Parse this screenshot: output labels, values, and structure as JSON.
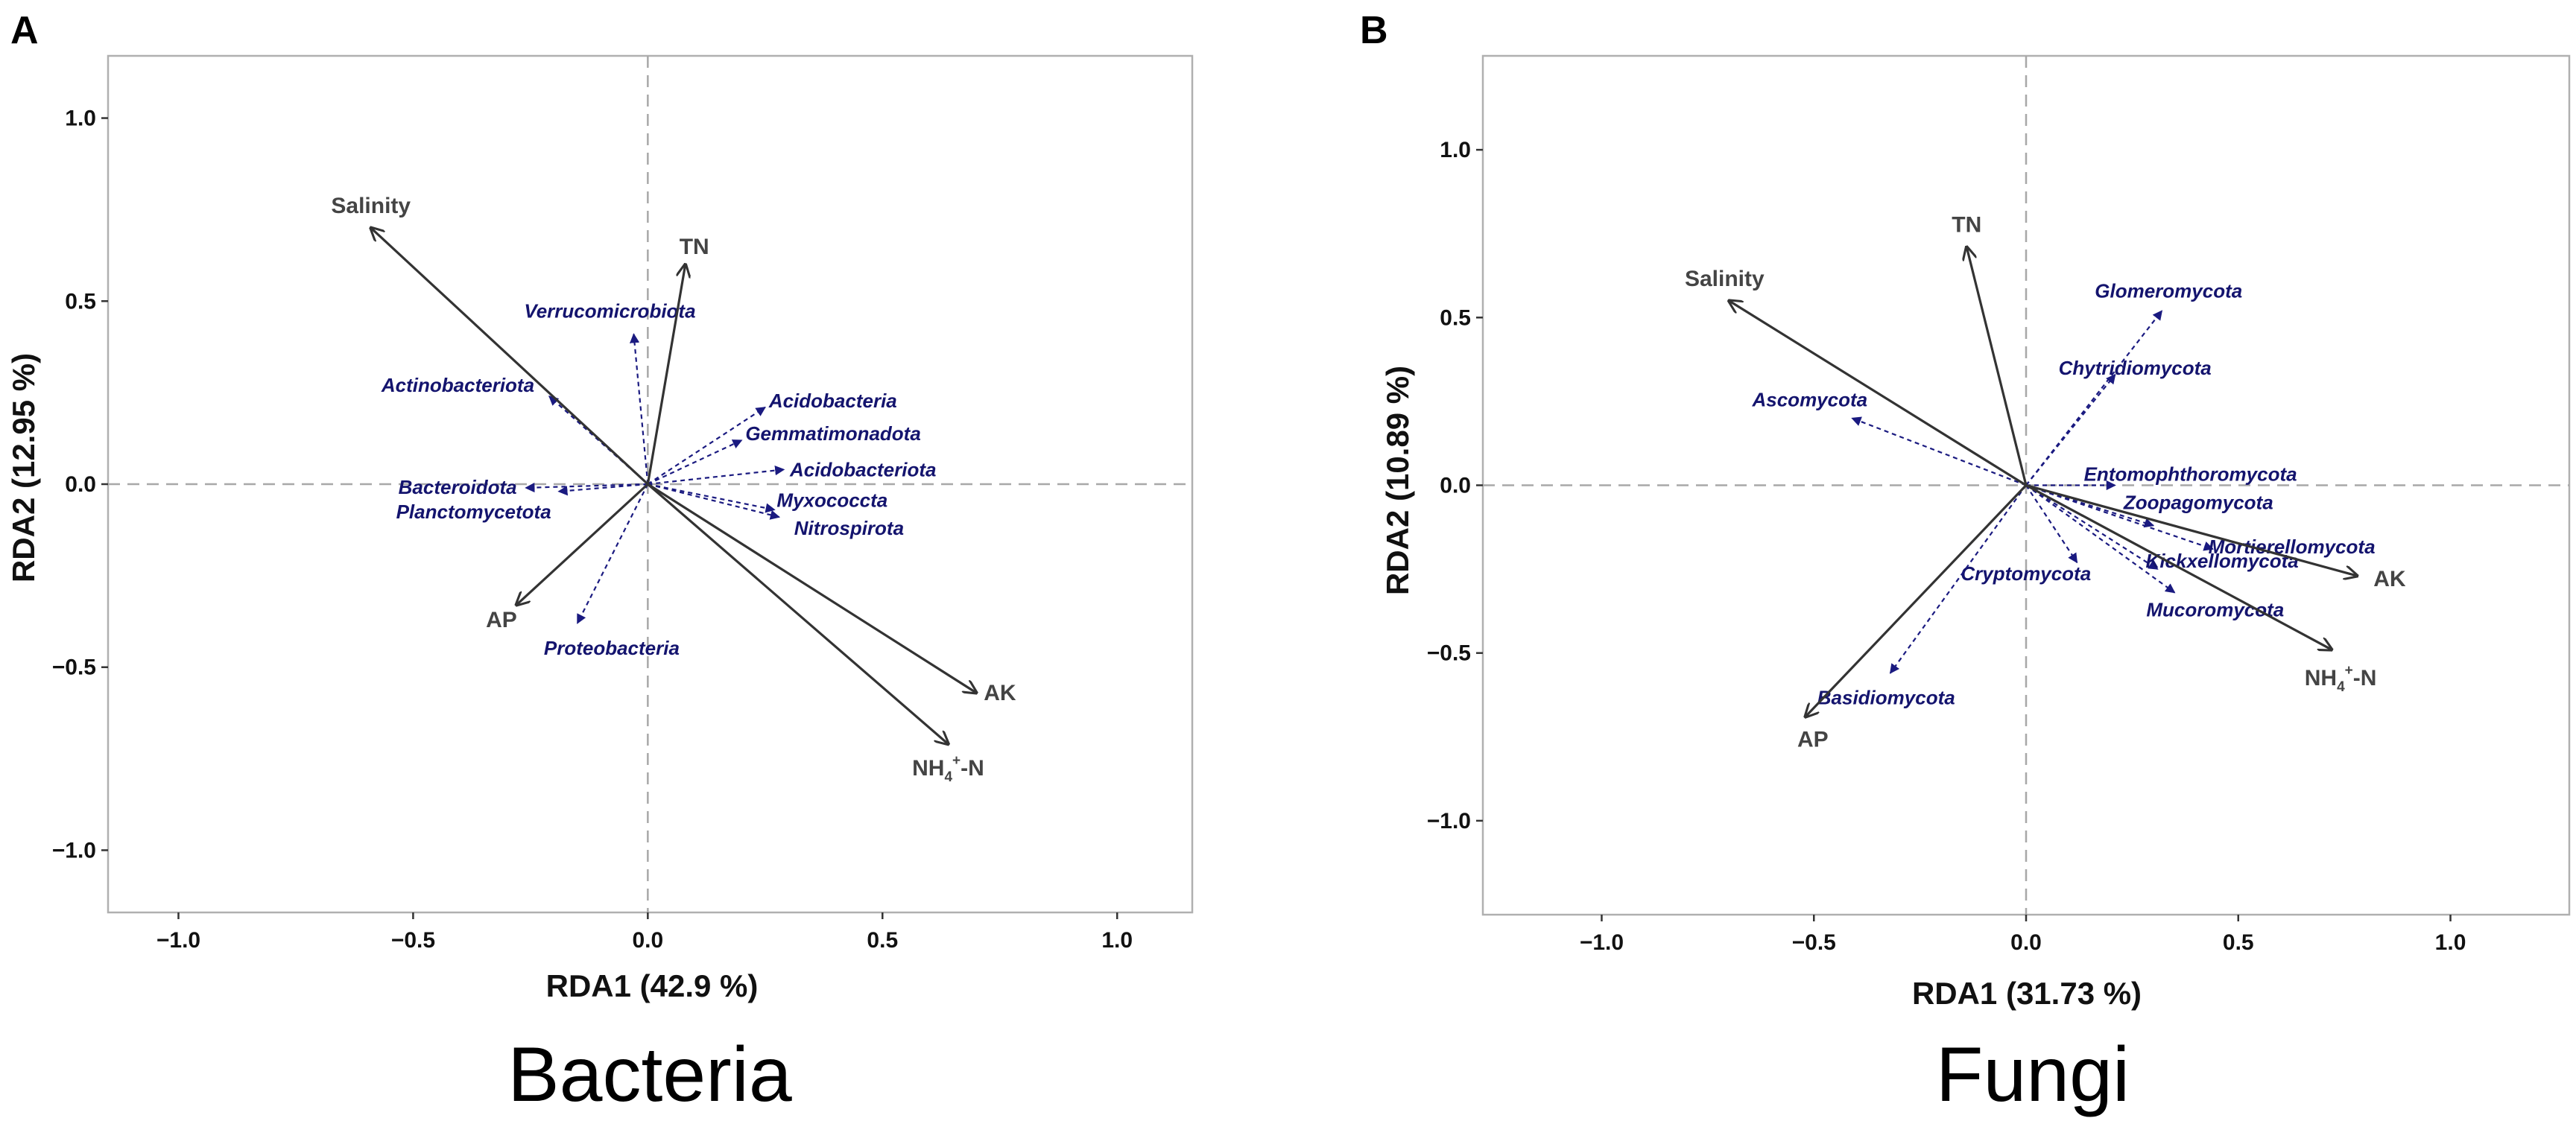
{
  "figure": {
    "panels": [
      {
        "letter": "A",
        "caption": "Bacteria",
        "xlabel": "RDA1 (42.9 %)",
        "ylabel": "RDA2 (12.95 %)"
      },
      {
        "letter": "B",
        "caption": "Fungi",
        "xlabel": "RDA1 (31.73 %)",
        "ylabel": "RDA2 (10.89 %)"
      }
    ]
  },
  "chart_data": [
    {
      "type": "scatter",
      "title": "Bacteria",
      "panel": "A",
      "xlabel": "RDA1 (42.9 %)",
      "ylabel": "RDA2 (12.95 %)",
      "xlim": [
        -1.15,
        1.16
      ],
      "ylim": [
        -1.17,
        1.17
      ],
      "xticks": [
        -1.0,
        -0.5,
        0.0,
        0.5,
        1.0
      ],
      "yticks": [
        -1.0,
        -0.5,
        0.0,
        0.5,
        1.0
      ],
      "xtick_labels": [
        "−1.0",
        "−0.5",
        "0.0",
        "0.5",
        "1.0"
      ],
      "ytick_labels": [
        "−1.0",
        "−0.5",
        "0.0",
        "0.5",
        "1.0"
      ],
      "grid": false,
      "environmental_vectors": [
        {
          "name": "Salinity",
          "x": -0.59,
          "y": 0.7
        },
        {
          "name": "TN",
          "x": 0.08,
          "y": 0.6
        },
        {
          "name": "AP",
          "x": -0.28,
          "y": -0.33
        },
        {
          "name": "AK",
          "x": 0.7,
          "y": -0.57
        },
        {
          "name": "NH4+-N",
          "sub": "4",
          "sup": "+",
          "base": "NH",
          "tail": "-N",
          "x": 0.64,
          "y": -0.71
        }
      ],
      "taxa_vectors": [
        {
          "name": "Verrucomicrobiota",
          "x": -0.03,
          "y": 0.41
        },
        {
          "name": "Actinobacteriota",
          "x": -0.21,
          "y": 0.24
        },
        {
          "name": "Acidobacteria",
          "x": 0.25,
          "y": 0.21
        },
        {
          "name": "Gemmatimonadota",
          "x": 0.2,
          "y": 0.12
        },
        {
          "name": "Acidobacteriota",
          "x": 0.29,
          "y": 0.04
        },
        {
          "name": "Bacteroidota",
          "x": -0.26,
          "y": -0.01
        },
        {
          "name": "Planctomycetota",
          "x": -0.19,
          "y": -0.02
        },
        {
          "name": "Myxococcta",
          "x": 0.27,
          "y": -0.07
        },
        {
          "name": "Nitrospirota",
          "x": 0.28,
          "y": -0.09
        },
        {
          "name": "Proteobacteria",
          "x": -0.15,
          "y": -0.38
        }
      ]
    },
    {
      "type": "scatter",
      "title": "Fungi",
      "panel": "B",
      "xlabel": "RDA1 (31.73 %)",
      "ylabel": "RDA2 (10.89 %)",
      "xlim": [
        -1.28,
        1.28
      ],
      "ylim": [
        -1.28,
        1.28
      ],
      "xticks": [
        -1.0,
        -0.5,
        0.0,
        0.5,
        1.0
      ],
      "yticks": [
        -1.0,
        -0.5,
        0.0,
        0.5,
        1.0
      ],
      "xtick_labels": [
        "−1.0",
        "−0.5",
        "0.0",
        "0.5",
        "1.0"
      ],
      "ytick_labels": [
        "−1.0",
        "−0.5",
        "0.0",
        "0.5",
        "1.0"
      ],
      "grid": false,
      "environmental_vectors": [
        {
          "name": "Salinity",
          "x": -0.7,
          "y": 0.55
        },
        {
          "name": "TN",
          "x": -0.14,
          "y": 0.71
        },
        {
          "name": "AP",
          "x": -0.52,
          "y": -0.69
        },
        {
          "name": "AK",
          "x": 0.78,
          "y": -0.27
        },
        {
          "name": "NH4+-N",
          "sub": "4",
          "sup": "+",
          "base": "NH",
          "tail": "-N",
          "x": 0.72,
          "y": -0.49
        }
      ],
      "taxa_vectors": [
        {
          "name": "Glomeromycota",
          "x": 0.32,
          "y": 0.52
        },
        {
          "name": "Chytridiomycota",
          "x": 0.21,
          "y": 0.33
        },
        {
          "name": "Ascomycota",
          "x": -0.41,
          "y": 0.2
        },
        {
          "name": "Entomophthoromycota",
          "x": 0.21,
          "y": 0.0
        },
        {
          "name": "Zoopagomycota",
          "x": 0.3,
          "y": -0.12
        },
        {
          "name": "Mortierellomycota",
          "x": 0.44,
          "y": -0.19
        },
        {
          "name": "Kickxellomycota",
          "x": 0.31,
          "y": -0.25
        },
        {
          "name": "Cryptomycota",
          "x": 0.12,
          "y": -0.23
        },
        {
          "name": "Mucoromycota",
          "x": 0.35,
          "y": -0.32
        },
        {
          "name": "Basidiomycota",
          "x": -0.32,
          "y": -0.56
        }
      ]
    }
  ]
}
